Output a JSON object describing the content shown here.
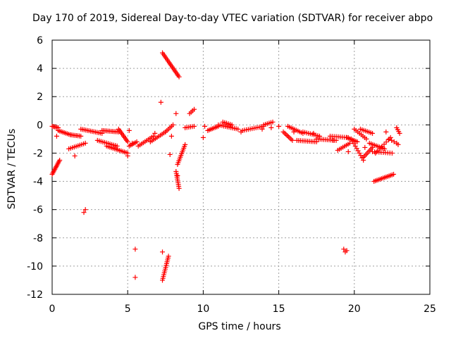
{
  "chart_data": {
    "type": "scatter",
    "title": "Day 170 of 2019, Sidereal Day-to-day VTEC variation (SDTVAR) for receiver abpo",
    "xlabel": "GPS time / hours",
    "ylabel": "SDTVAR / TECUs",
    "xlim": [
      0,
      25
    ],
    "ylim": [
      -12,
      6
    ],
    "xticks": [
      "0",
      "5",
      "10",
      "15",
      "20",
      "25"
    ],
    "yticks": [
      "6",
      "4",
      "2",
      "0",
      "-2",
      "-4",
      "-6",
      "-8",
      "-10",
      "-12"
    ],
    "grid": true,
    "marker": "+",
    "color": "#ff0000",
    "segments": [
      {
        "x0": 0.0,
        "x1": 0.5,
        "y0": -3.5,
        "y1": -2.5,
        "n": 12
      },
      {
        "x0": 0.0,
        "x1": 0.4,
        "y0": -0.1,
        "y1": -0.2,
        "n": 6
      },
      {
        "x0": 0.4,
        "x1": 1.2,
        "y0": -0.4,
        "y1": -0.7,
        "n": 9
      },
      {
        "x0": 1.2,
        "x1": 1.9,
        "y0": -0.7,
        "y1": -0.8,
        "n": 8
      },
      {
        "x0": 1.9,
        "x1": 3.3,
        "y0": -0.3,
        "y1": -0.6,
        "n": 14
      },
      {
        "x0": 1.1,
        "x1": 2.2,
        "y0": -1.7,
        "y1": -1.3,
        "n": 10
      },
      {
        "x0": 3.3,
        "x1": 4.4,
        "y0": -0.4,
        "y1": -0.5,
        "n": 12
      },
      {
        "x0": 3.0,
        "x1": 4.3,
        "y0": -1.1,
        "y1": -1.5,
        "n": 12
      },
      {
        "x0": 3.6,
        "x1": 5.0,
        "y0": -1.5,
        "y1": -2.0,
        "n": 14
      },
      {
        "x0": 4.4,
        "x1": 5.0,
        "y0": -0.3,
        "y1": -1.2,
        "n": 10
      },
      {
        "x0": 5.1,
        "x1": 5.6,
        "y0": -1.5,
        "y1": -1.2,
        "n": 6
      },
      {
        "x0": 5.7,
        "x1": 6.7,
        "y0": -1.5,
        "y1": -0.8,
        "n": 10
      },
      {
        "x0": 6.5,
        "x1": 7.5,
        "y0": -1.2,
        "y1": -0.5,
        "n": 10
      },
      {
        "x0": 7.5,
        "x1": 8.0,
        "y0": -0.5,
        "y1": 0.0,
        "n": 6
      },
      {
        "x0": 7.3,
        "x1": 8.4,
        "y0": 5.1,
        "y1": 3.4,
        "n": 18
      },
      {
        "x0": 8.3,
        "x1": 8.8,
        "y0": -2.8,
        "y1": -1.4,
        "n": 12
      },
      {
        "x0": 8.2,
        "x1": 8.4,
        "y0": -3.3,
        "y1": -4.5,
        "n": 10
      },
      {
        "x0": 7.3,
        "x1": 7.7,
        "y0": -11.0,
        "y1": -9.3,
        "n": 14
      },
      {
        "x0": 8.8,
        "x1": 9.4,
        "y0": -0.2,
        "y1": -0.1,
        "n": 6
      },
      {
        "x0": 9.1,
        "x1": 9.4,
        "y0": 0.8,
        "y1": 1.1,
        "n": 4
      },
      {
        "x0": 10.3,
        "x1": 11.0,
        "y0": -0.4,
        "y1": -0.1,
        "n": 8
      },
      {
        "x0": 11.0,
        "x1": 12.3,
        "y0": 0.0,
        "y1": -0.3,
        "n": 12
      },
      {
        "x0": 11.3,
        "x1": 11.9,
        "y0": 0.2,
        "y1": 0.0,
        "n": 6
      },
      {
        "x0": 12.6,
        "x1": 14.0,
        "y0": -0.4,
        "y1": -0.1,
        "n": 12
      },
      {
        "x0": 14.0,
        "x1": 14.6,
        "y0": 0.0,
        "y1": 0.2,
        "n": 6
      },
      {
        "x0": 15.3,
        "x1": 15.9,
        "y0": -0.5,
        "y1": -1.1,
        "n": 8
      },
      {
        "x0": 15.6,
        "x1": 16.6,
        "y0": -0.1,
        "y1": -0.6,
        "n": 10
      },
      {
        "x0": 16.2,
        "x1": 17.5,
        "y0": -1.1,
        "y1": -1.2,
        "n": 12
      },
      {
        "x0": 16.6,
        "x1": 17.7,
        "y0": -0.5,
        "y1": -0.8,
        "n": 10
      },
      {
        "x0": 17.5,
        "x1": 18.8,
        "y0": -1.0,
        "y1": -1.1,
        "n": 12
      },
      {
        "x0": 18.4,
        "x1": 19.6,
        "y0": -0.8,
        "y1": -0.9,
        "n": 10
      },
      {
        "x0": 18.9,
        "x1": 19.7,
        "y0": -1.8,
        "y1": -1.3,
        "n": 8
      },
      {
        "x0": 19.5,
        "x1": 20.2,
        "y0": -0.9,
        "y1": -1.2,
        "n": 8
      },
      {
        "x0": 19.8,
        "x1": 20.6,
        "y0": -1.0,
        "y1": -2.5,
        "n": 10
      },
      {
        "x0": 20.0,
        "x1": 20.8,
        "y0": -0.3,
        "y1": -1.0,
        "n": 8
      },
      {
        "x0": 20.4,
        "x1": 21.2,
        "y0": -0.3,
        "y1": -0.6,
        "n": 8
      },
      {
        "x0": 20.6,
        "x1": 21.2,
        "y0": -2.3,
        "y1": -1.6,
        "n": 8
      },
      {
        "x0": 21.0,
        "x1": 22.0,
        "y0": -1.3,
        "y1": -1.7,
        "n": 10
      },
      {
        "x0": 21.2,
        "x1": 22.5,
        "y0": -1.9,
        "y1": -2.0,
        "n": 10
      },
      {
        "x0": 21.4,
        "x1": 22.4,
        "y0": -2.0,
        "y1": -0.9,
        "n": 8
      },
      {
        "x0": 21.3,
        "x1": 22.6,
        "y0": -4.0,
        "y1": -3.5,
        "n": 14
      },
      {
        "x0": 22.3,
        "x1": 22.8,
        "y0": -1.0,
        "y1": -1.3,
        "n": 4
      },
      {
        "x0": 22.8,
        "x1": 23.0,
        "y0": -0.2,
        "y1": -0.6,
        "n": 4
      }
    ],
    "points": [
      [
        0.3,
        -0.8
      ],
      [
        2.1,
        -6.2
      ],
      [
        2.2,
        -6.0
      ],
      [
        1.5,
        -2.2
      ],
      [
        5.0,
        -2.2
      ],
      [
        5.5,
        -8.8
      ],
      [
        5.5,
        -10.8
      ],
      [
        5.1,
        -0.4
      ],
      [
        5.3,
        -1.3
      ],
      [
        6.8,
        -0.6
      ],
      [
        7.3,
        -9.0
      ],
      [
        7.2,
        1.6
      ],
      [
        7.8,
        -2.1
      ],
      [
        8.2,
        0.8
      ],
      [
        7.9,
        -0.8
      ],
      [
        8.3,
        -3.6
      ],
      [
        10.0,
        -0.9
      ],
      [
        10.1,
        -0.1
      ],
      [
        14.5,
        -0.2
      ],
      [
        15.0,
        -0.1
      ],
      [
        16.0,
        -0.5
      ],
      [
        17.3,
        -0.6
      ],
      [
        18.6,
        -1.1
      ],
      [
        19.3,
        -8.8
      ],
      [
        19.4,
        -9.0
      ],
      [
        19.5,
        -8.9
      ],
      [
        19.6,
        -1.9
      ],
      [
        20.7,
        -1.6
      ],
      [
        22.1,
        -0.5
      ],
      [
        22.9,
        -1.4
      ],
      [
        12.5,
        -0.5
      ],
      [
        13.9,
        -0.3
      ]
    ]
  }
}
